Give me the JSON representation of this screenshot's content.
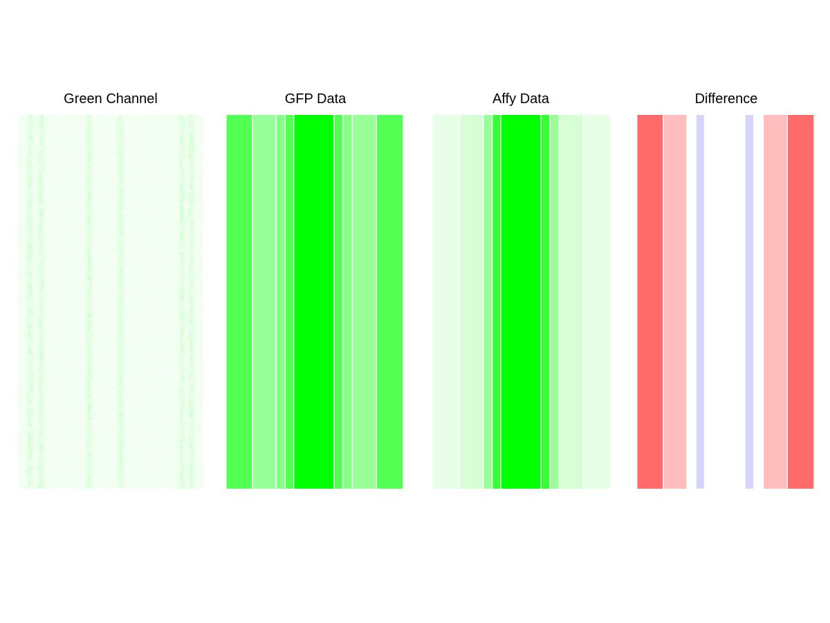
{
  "colors": {
    "green_full": "#00ff00",
    "diff_positive": "#ff0000",
    "diff_negative": "#0000ff",
    "separator": "#ffffff"
  },
  "chart_data": [
    {
      "type": "heatmap",
      "title": "Green Channel",
      "description_of_content": "noisy photo-like image with faint vertical green streaks",
      "base_intensity": 0.05,
      "streak_intensity": 0.15,
      "grid": false
    },
    {
      "type": "heatmap",
      "title": "GFP Data",
      "color": "#00ff00",
      "bands": [
        {
          "width": 0.148,
          "intensity": 0.67
        },
        {
          "width": 0.132,
          "intensity": 0.4
        },
        {
          "width": 0.05,
          "intensity": 0.48
        },
        {
          "width": 0.048,
          "intensity": 0.67
        },
        {
          "width": 0.225,
          "intensity": 1.0
        },
        {
          "width": 0.05,
          "intensity": 0.67
        },
        {
          "width": 0.052,
          "intensity": 0.48
        },
        {
          "width": 0.135,
          "intensity": 0.4
        },
        {
          "width": 0.15,
          "intensity": 0.67
        }
      ],
      "grid": false
    },
    {
      "type": "heatmap",
      "title": "Affy Data",
      "color": "#00ff00",
      "bands": [
        {
          "width": 0.155,
          "intensity": 0.1
        },
        {
          "width": 0.132,
          "intensity": 0.16
        },
        {
          "width": 0.05,
          "intensity": 0.4
        },
        {
          "width": 0.048,
          "intensity": 0.8
        },
        {
          "width": 0.225,
          "intensity": 1.0
        },
        {
          "width": 0.05,
          "intensity": 0.8
        },
        {
          "width": 0.052,
          "intensity": 0.4
        },
        {
          "width": 0.135,
          "intensity": 0.16
        },
        {
          "width": 0.153,
          "intensity": 0.1
        }
      ],
      "grid": false
    },
    {
      "type": "heatmap",
      "title": "Difference",
      "bands": [
        {
          "width": 0.148,
          "sign": "positive",
          "intensity": 0.58
        },
        {
          "width": 0.132,
          "sign": "positive",
          "intensity": 0.26
        },
        {
          "width": 0.05,
          "sign": "none",
          "intensity": 0.0
        },
        {
          "width": 0.048,
          "sign": "negative",
          "intensity": 0.17
        },
        {
          "width": 0.225,
          "sign": "none",
          "intensity": 0.0
        },
        {
          "width": 0.05,
          "sign": "negative",
          "intensity": 0.17
        },
        {
          "width": 0.052,
          "sign": "none",
          "intensity": 0.0
        },
        {
          "width": 0.135,
          "sign": "positive",
          "intensity": 0.26
        },
        {
          "width": 0.15,
          "sign": "positive",
          "intensity": 0.58
        }
      ],
      "grid": false
    }
  ]
}
